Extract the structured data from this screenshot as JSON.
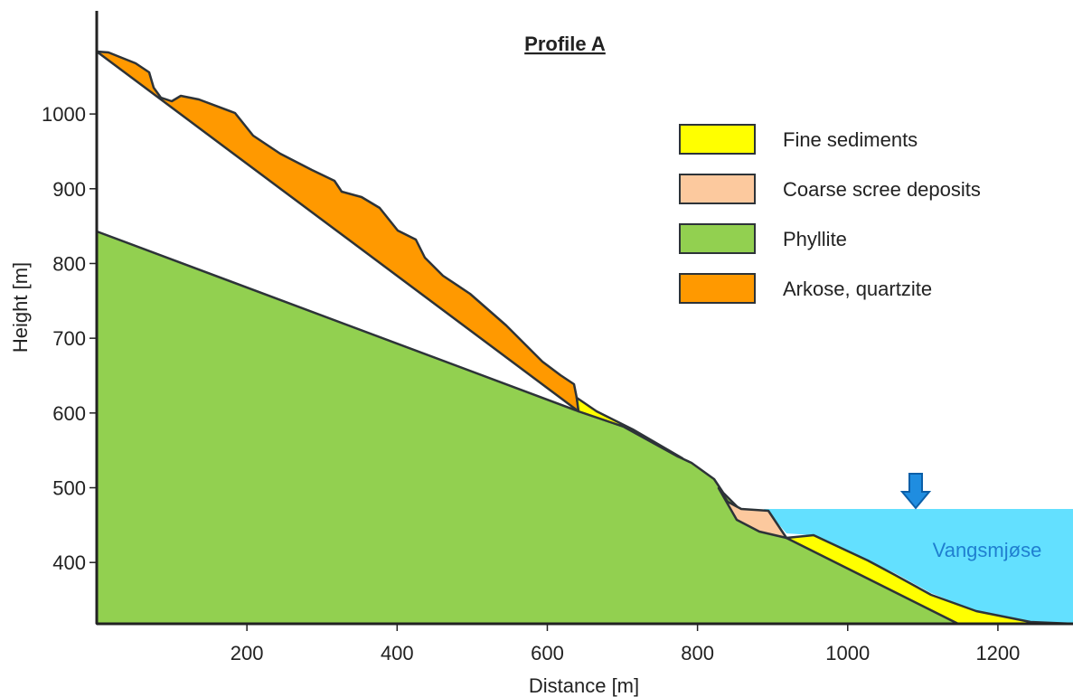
{
  "title": "Profile A",
  "axes": {
    "xlabel": "Distance [m]",
    "ylabel": "Height [m]",
    "xlim": [
      0,
      1300
    ],
    "ylim": [
      318,
      1138
    ],
    "xticks": [
      200,
      400,
      600,
      800,
      1000,
      1200
    ],
    "yticks": [
      400,
      500,
      600,
      700,
      800,
      900,
      1000
    ]
  },
  "legend": [
    {
      "label": "Fine sediments",
      "color": "#ffff00"
    },
    {
      "label": "Coarse scree deposits",
      "color": "#fcc99e"
    },
    {
      "label": "Phyllite",
      "color": "#92d050"
    },
    {
      "label": "Arkose, quartzite",
      "color": "#ff9900"
    }
  ],
  "lake": "Vangsmjøse"
}
